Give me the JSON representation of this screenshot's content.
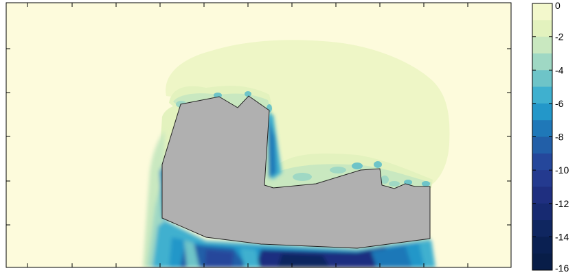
{
  "chart_data": {
    "type": "heatmap",
    "title": "",
    "xlabel": "",
    "ylabel": "",
    "grid": false,
    "colorbar": {
      "position": "right",
      "ticks": [
        0,
        -2,
        -4,
        -6,
        -8,
        -10,
        -12,
        -14,
        -16
      ],
      "tick_labels": [
        "0",
        "-2",
        "-4",
        "-6",
        "-8",
        "-10",
        "-12",
        "-14",
        "-16"
      ],
      "range": [
        -16,
        0
      ],
      "levels": [
        {
          "value": 0,
          "color": "#fdfbdc"
        },
        {
          "value": -1,
          "color": "#f3f8cc"
        },
        {
          "value": -2,
          "color": "#e3f2be"
        },
        {
          "value": -3,
          "color": "#c9e8c0"
        },
        {
          "value": -4,
          "color": "#9fd8c4"
        },
        {
          "value": -5,
          "color": "#6ec4c8"
        },
        {
          "value": -6,
          "color": "#3fb0cf"
        },
        {
          "value": -7,
          "color": "#2397c9"
        },
        {
          "value": -8,
          "color": "#1f78b8"
        },
        {
          "value": -9,
          "color": "#225fa8"
        },
        {
          "value": -10,
          "color": "#25479b"
        },
        {
          "value": -11,
          "color": "#243a8f"
        },
        {
          "value": -12,
          "color": "#1f2f80"
        },
        {
          "value": -13,
          "color": "#172a71"
        },
        {
          "value": -14,
          "color": "#0f2660"
        },
        {
          "value": -15,
          "color": "#0a2052"
        },
        {
          "value": -16,
          "color": "#081d48"
        }
      ]
    },
    "background_color": "#fdfbdc",
    "obstacle_color": "#b0b0b0"
  }
}
